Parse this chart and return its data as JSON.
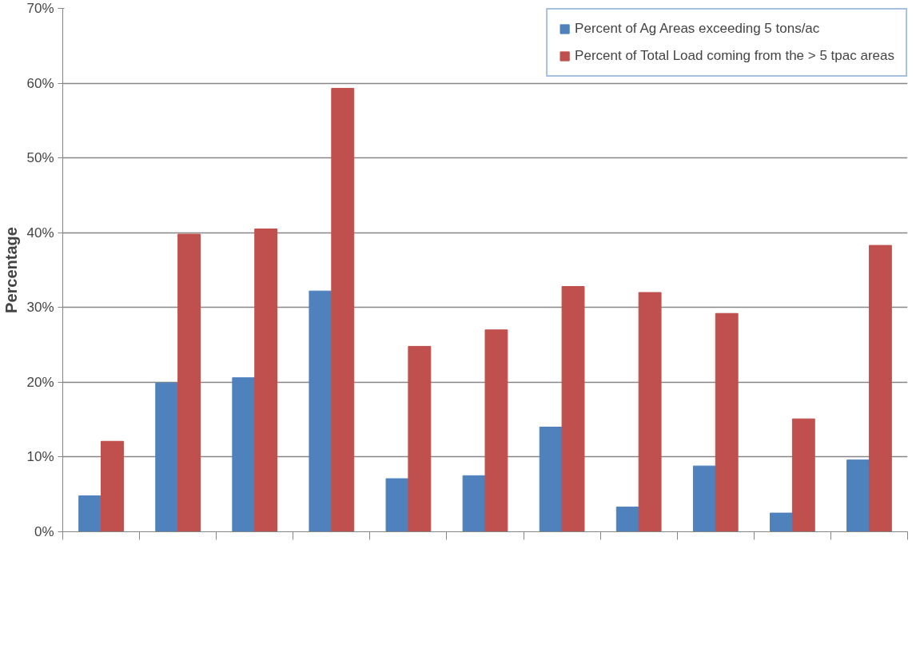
{
  "chart_data": {
    "type": "bar",
    "ylabel": "Percentage",
    "categories": [
      null,
      null,
      null,
      null,
      null,
      null,
      null,
      null,
      null,
      null,
      null
    ],
    "series": [
      {
        "name": "Percent of Ag Areas exceeding 5 tons/ac",
        "color": "#4f81bd",
        "values": [
          4.8,
          19.9,
          20.6,
          32.2,
          7.1,
          7.5,
          14.0,
          3.3,
          8.8,
          2.5,
          9.6
        ]
      },
      {
        "name": "Percent of Total Load coming from the > 5 tpac areas",
        "color": "#c0504d",
        "values": [
          12.1,
          39.8,
          40.5,
          59.3,
          24.8,
          27.0,
          32.8,
          32.0,
          29.2,
          15.1,
          38.3
        ]
      }
    ],
    "ylim": [
      0,
      70
    ],
    "yticks": [
      {
        "value": 0,
        "label": "0%"
      },
      {
        "value": 10,
        "label": "10%"
      },
      {
        "value": 20,
        "label": "20%"
      },
      {
        "value": 30,
        "label": "30%"
      },
      {
        "value": 40,
        "label": "40%"
      },
      {
        "value": 50,
        "label": "50%"
      },
      {
        "value": 60,
        "label": "60%"
      },
      {
        "value": 70,
        "label": "70%"
      }
    ],
    "grid": "y",
    "legend": "top right"
  }
}
